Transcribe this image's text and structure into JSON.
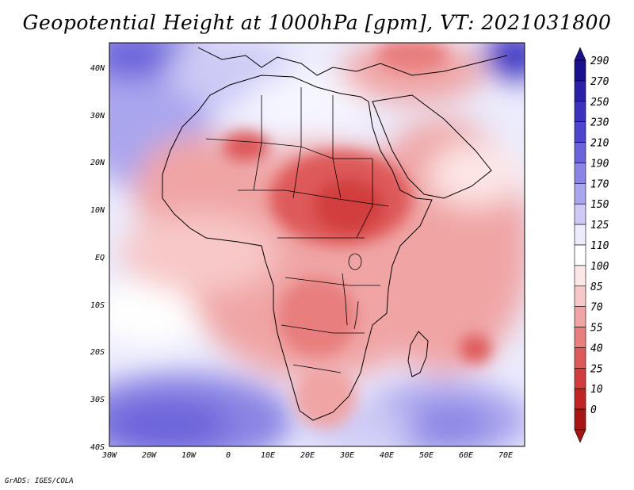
{
  "title": "Geopotential Height at 1000hPa [gpm], VT: 2021031800",
  "footer": "GrADS: IGES/COLA",
  "map": {
    "lat_ticks": [
      "40N",
      "30N",
      "20N",
      "10N",
      "EQ",
      "10S",
      "20S",
      "30S",
      "40S"
    ],
    "lon_ticks": [
      "30W",
      "20W",
      "10W",
      "0",
      "10E",
      "20E",
      "30E",
      "40E",
      "50E",
      "60E",
      "70E"
    ],
    "lon_range": [
      -30,
      75
    ],
    "lat_range": [
      -40,
      45
    ]
  },
  "colorbar": {
    "levels": [
      "290",
      "270",
      "250",
      "230",
      "210",
      "190",
      "170",
      "150",
      "125",
      "110",
      "100",
      "85",
      "70",
      "55",
      "40",
      "25",
      "10",
      "0"
    ],
    "colors": [
      "#1a0f8c",
      "#2a1fa8",
      "#3b30c0",
      "#4d44d0",
      "#6a62da",
      "#8a84e4",
      "#aaa6ee",
      "#cdcaf6",
      "#ececfd",
      "#ffffff",
      "#fde6e6",
      "#f8c8c8",
      "#f0a4a4",
      "#e87e7e",
      "#de5a5a",
      "#d23c3c",
      "#c02424",
      "#a81414"
    ]
  },
  "contour_fields": [
    {
      "lon": 20,
      "lat": -35,
      "value": 160
    },
    {
      "lon": -25,
      "lat": -35,
      "value": 220
    },
    {
      "lon": 60,
      "lat": -33,
      "value": 200
    },
    {
      "lon": 5,
      "lat": 22,
      "value": 55
    },
    {
      "lon": 35,
      "lat": 12,
      "value": 40
    },
    {
      "lon": 65,
      "lat": -22,
      "value": 55
    },
    {
      "lon": -25,
      "lat": 35,
      "value": 170
    },
    {
      "lon": 10,
      "lat": 37,
      "value": 150
    },
    {
      "lon": 70,
      "lat": 42,
      "value": 230
    }
  ]
}
